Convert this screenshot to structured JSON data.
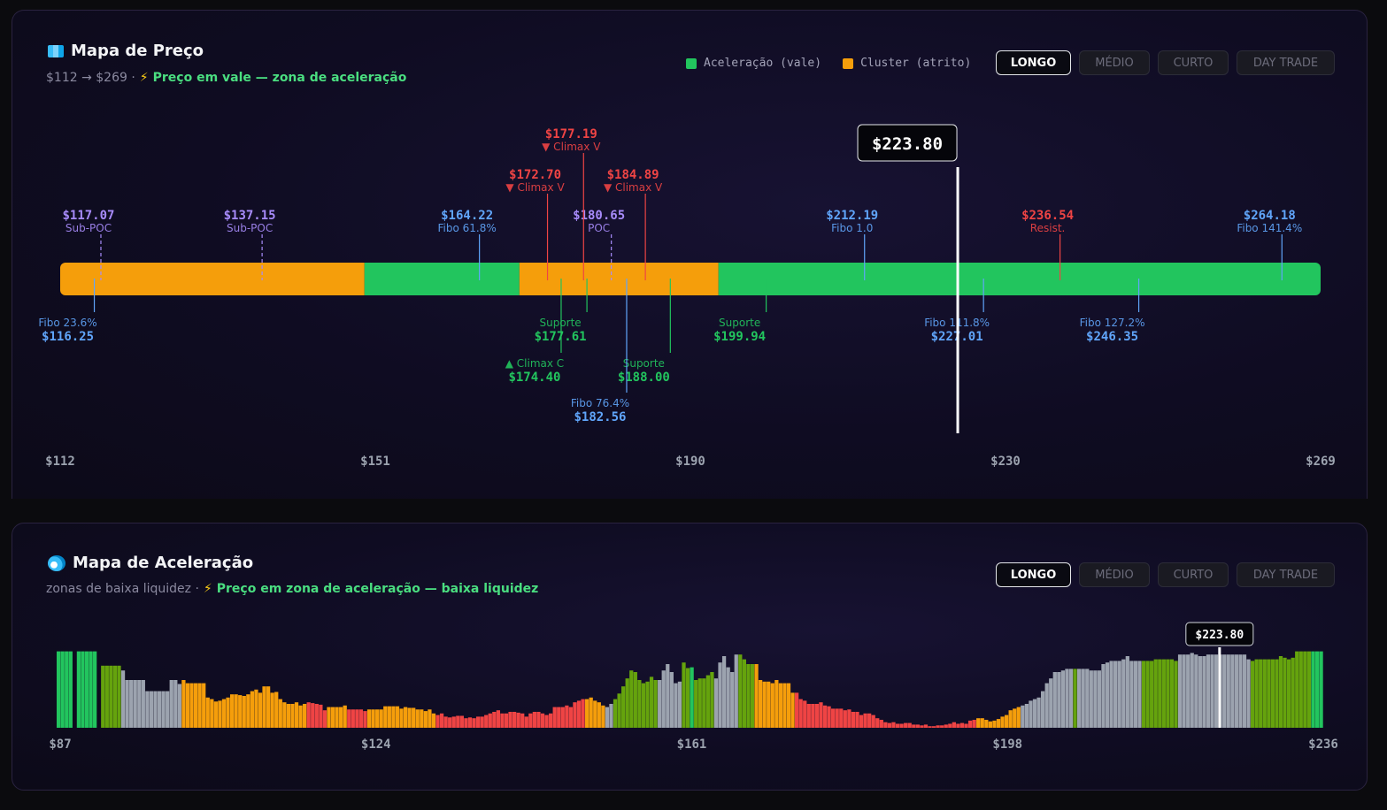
{
  "colors": {
    "green": "#22c55e",
    "orange": "#f59e0b",
    "red": "#ef4444",
    "gray": "#9ca3af",
    "olive": "#65a30d",
    "blue": "#60a5fa",
    "purple": "#a78bfa",
    "marker": "#ffffff"
  },
  "tabs": [
    "LONGO",
    "MÉDIO",
    "CURTO",
    "DAY TRADE"
  ],
  "price_map": {
    "icon": "map-icon",
    "title": "Mapa de Preço",
    "range_text": "$112 → $269 ·",
    "status": "Preço em vale — zona de aceleração",
    "legend": [
      {
        "label": "Aceleração (vale)",
        "color": "#22c55e"
      },
      {
        "label": "Cluster (atrito)",
        "color": "#f59e0b"
      }
    ],
    "active_tab": "LONGO"
  },
  "accel_map": {
    "icon": "wave-icon",
    "title": "Mapa de Aceleração",
    "range_text": "zonas de baixa liquidez ·",
    "status": "Preço em zona de aceleração — baixa liquidez",
    "active_tab": "LONGO"
  },
  "chart_data": [
    {
      "type": "price-level-map",
      "xlim": [
        112,
        269
      ],
      "ticks": [
        "$112",
        "$151",
        "$190",
        "$230",
        "$269"
      ],
      "current_price": 223.8,
      "current_label": "$223.80",
      "zones": [
        {
          "from": 112,
          "to": 149.9,
          "kind": "cluster"
        },
        {
          "from": 149.9,
          "to": 169.2,
          "kind": "aceleracao"
        },
        {
          "from": 169.2,
          "to": 194,
          "kind": "cluster"
        },
        {
          "from": 194,
          "to": 269,
          "kind": "aceleracao"
        }
      ],
      "levels_above": [
        {
          "price": 117.07,
          "value": "$117.07",
          "label": "Sub-POC",
          "color": "purple",
          "tier": 1,
          "dashed": true
        },
        {
          "price": 137.15,
          "value": "$137.15",
          "label": "Sub-POC",
          "color": "purple",
          "tier": 1,
          "dashed": true
        },
        {
          "price": 164.22,
          "value": "$164.22",
          "label": "Fibo 61.8%",
          "color": "blue",
          "tier": 1
        },
        {
          "price": 180.65,
          "value": "$180.65",
          "label": "POC",
          "color": "purple",
          "tier": 1,
          "dashed": true
        },
        {
          "price": 212.19,
          "value": "$212.19",
          "label": "Fibo 1.0",
          "color": "blue",
          "tier": 1
        },
        {
          "price": 236.54,
          "value": "$236.54",
          "label": "Resist.",
          "color": "red",
          "tier": 1
        },
        {
          "price": 264.18,
          "value": "$264.18",
          "label": "Fibo 141.4%",
          "color": "blue",
          "tier": 1
        },
        {
          "price": 172.7,
          "value": "$172.70",
          "label": "▼ Climax V",
          "color": "red",
          "tier": 2
        },
        {
          "price": 184.89,
          "value": "$184.89",
          "label": "▼ Climax V",
          "color": "red",
          "tier": 2
        },
        {
          "price": 177.19,
          "value": "$177.19",
          "label": "▼ Climax V",
          "color": "red",
          "tier": 3
        }
      ],
      "levels_below": [
        {
          "price": 116.25,
          "value": "$116.25",
          "label": "Fibo 23.6%",
          "color": "blue",
          "tier": 1
        },
        {
          "price": 177.61,
          "value": "$177.61",
          "label": "Suporte",
          "color": "green",
          "tier": 1
        },
        {
          "price": 199.94,
          "value": "$199.94",
          "label": "Suporte",
          "color": "green",
          "tier": 1
        },
        {
          "price": 227.01,
          "value": "$227.01",
          "label": "Fibo 111.8%",
          "color": "blue",
          "tier": 1
        },
        {
          "price": 246.35,
          "value": "$246.35",
          "label": "Fibo 127.2%",
          "color": "blue",
          "tier": 1
        },
        {
          "price": 174.4,
          "value": "$174.40",
          "label": "▲ Climax C",
          "color": "green",
          "tier": 2
        },
        {
          "price": 188.0,
          "value": "$188.00",
          "label": "Suporte",
          "color": "green",
          "tier": 2
        },
        {
          "price": 182.56,
          "value": "$182.56",
          "label": "Fibo 76.4%",
          "color": "blue",
          "tier": 3
        }
      ]
    },
    {
      "type": "bar",
      "xlim": [
        87,
        236
      ],
      "ticks": [
        "$87",
        "$124",
        "$161",
        "$198",
        "$236"
      ],
      "current_price": 223.8,
      "current_label": "$223.80",
      "ylim": [
        0,
        100
      ],
      "color_key": {
        "G": "green",
        "O": "olive",
        "Y": "gray",
        "A": "orange",
        "R": "red"
      },
      "values": [
        96,
        96,
        96,
        96,
        0,
        96,
        96,
        96,
        96,
        96,
        0,
        78,
        78,
        78,
        78,
        78,
        72,
        60,
        60,
        60,
        60,
        60,
        46,
        46,
        46,
        46,
        46,
        46,
        60,
        60,
        55,
        60,
        56,
        56,
        56,
        56,
        56,
        38,
        36,
        33,
        34,
        36,
        38,
        42,
        42,
        41,
        40,
        42,
        46,
        48,
        44,
        52,
        52,
        44,
        45,
        36,
        32,
        30,
        30,
        32,
        28,
        30,
        32,
        31,
        30,
        29,
        22,
        26,
        26,
        26,
        26,
        28,
        23,
        23,
        23,
        23,
        21,
        23,
        23,
        23,
        23,
        27,
        27,
        27,
        27,
        24,
        26,
        25,
        25,
        23,
        23,
        21,
        23,
        18,
        16,
        18,
        14,
        13,
        14,
        15,
        15,
        12,
        13,
        12,
        14,
        14,
        16,
        18,
        20,
        22,
        18,
        18,
        20,
        20,
        19,
        18,
        14,
        18,
        20,
        20,
        18,
        16,
        18,
        26,
        26,
        26,
        28,
        26,
        32,
        34,
        36,
        36,
        38,
        34,
        32,
        28,
        26,
        30,
        36,
        43,
        52,
        62,
        72,
        70,
        60,
        56,
        58,
        64,
        60,
        60,
        72,
        80,
        70,
        56,
        58,
        82,
        75,
        76,
        60,
        62,
        62,
        66,
        70,
        62,
        82,
        90,
        76,
        70,
        92,
        92,
        86,
        80,
        80,
        80,
        60,
        58,
        58,
        56,
        60,
        56,
        56,
        56,
        44,
        44,
        36,
        34,
        30,
        30,
        30,
        32,
        28,
        27,
        24,
        24,
        24,
        22,
        23,
        20,
        20,
        16,
        18,
        18,
        16,
        12,
        10,
        7,
        6,
        7,
        5,
        5,
        6,
        6,
        4,
        4,
        3,
        4,
        2,
        2,
        3,
        3,
        4,
        5,
        7,
        5,
        6,
        5,
        9,
        10,
        12,
        12,
        10,
        8,
        9,
        11,
        14,
        16,
        22,
        24,
        26,
        28,
        30,
        34,
        36,
        38,
        46,
        56,
        62,
        70,
        70,
        72,
        74,
        74,
        74,
        74,
        74,
        74,
        72,
        72,
        72,
        80,
        82,
        84,
        84,
        84,
        86,
        90,
        84,
        84,
        84,
        84,
        84,
        84,
        86,
        86,
        86,
        86,
        86,
        84,
        92,
        92,
        92,
        94,
        92,
        90,
        90,
        92,
        92,
        92,
        92,
        92,
        92,
        92,
        92,
        92,
        92,
        86,
        84,
        86,
        86,
        86,
        86,
        86,
        86,
        90,
        88,
        86,
        88,
        96,
        96,
        96,
        96,
        96,
        96,
        96
      ],
      "colors": "GGGGGGGGGGGOOOOOYYYYYYYYYYYYYYYAAAAAAAAAAAAAAAAAAAAAAAAAAAAAAARRRRRAAAAARRRRRAAAAAAAAAAAAAAAAARRRRRRRRRRRRRRRRRRRRRRRRRRRRRRRRRRRRRAAAAAYYOOOOOOOOOOOYYYYYYOOGOOOOOYYYYYYOOOOAAAAAAAAAARRRRRRRRRRRRRRRRRRRRRRRRRRRRRRRRRRRRRRRRRRRRRAAAAAAAAAAAYYYYYYYYYYYYYOYYYYYYYYYYYYYYYYOOOOOOOOOYYYYYYYYYYYYYYYYYYOOOOOOOOOOOOOOOGGGGGGGGOOOOOOGGGGGGGGGGGGGOOOOOOOOOGGGGGGGGGGG"
    }
  ]
}
